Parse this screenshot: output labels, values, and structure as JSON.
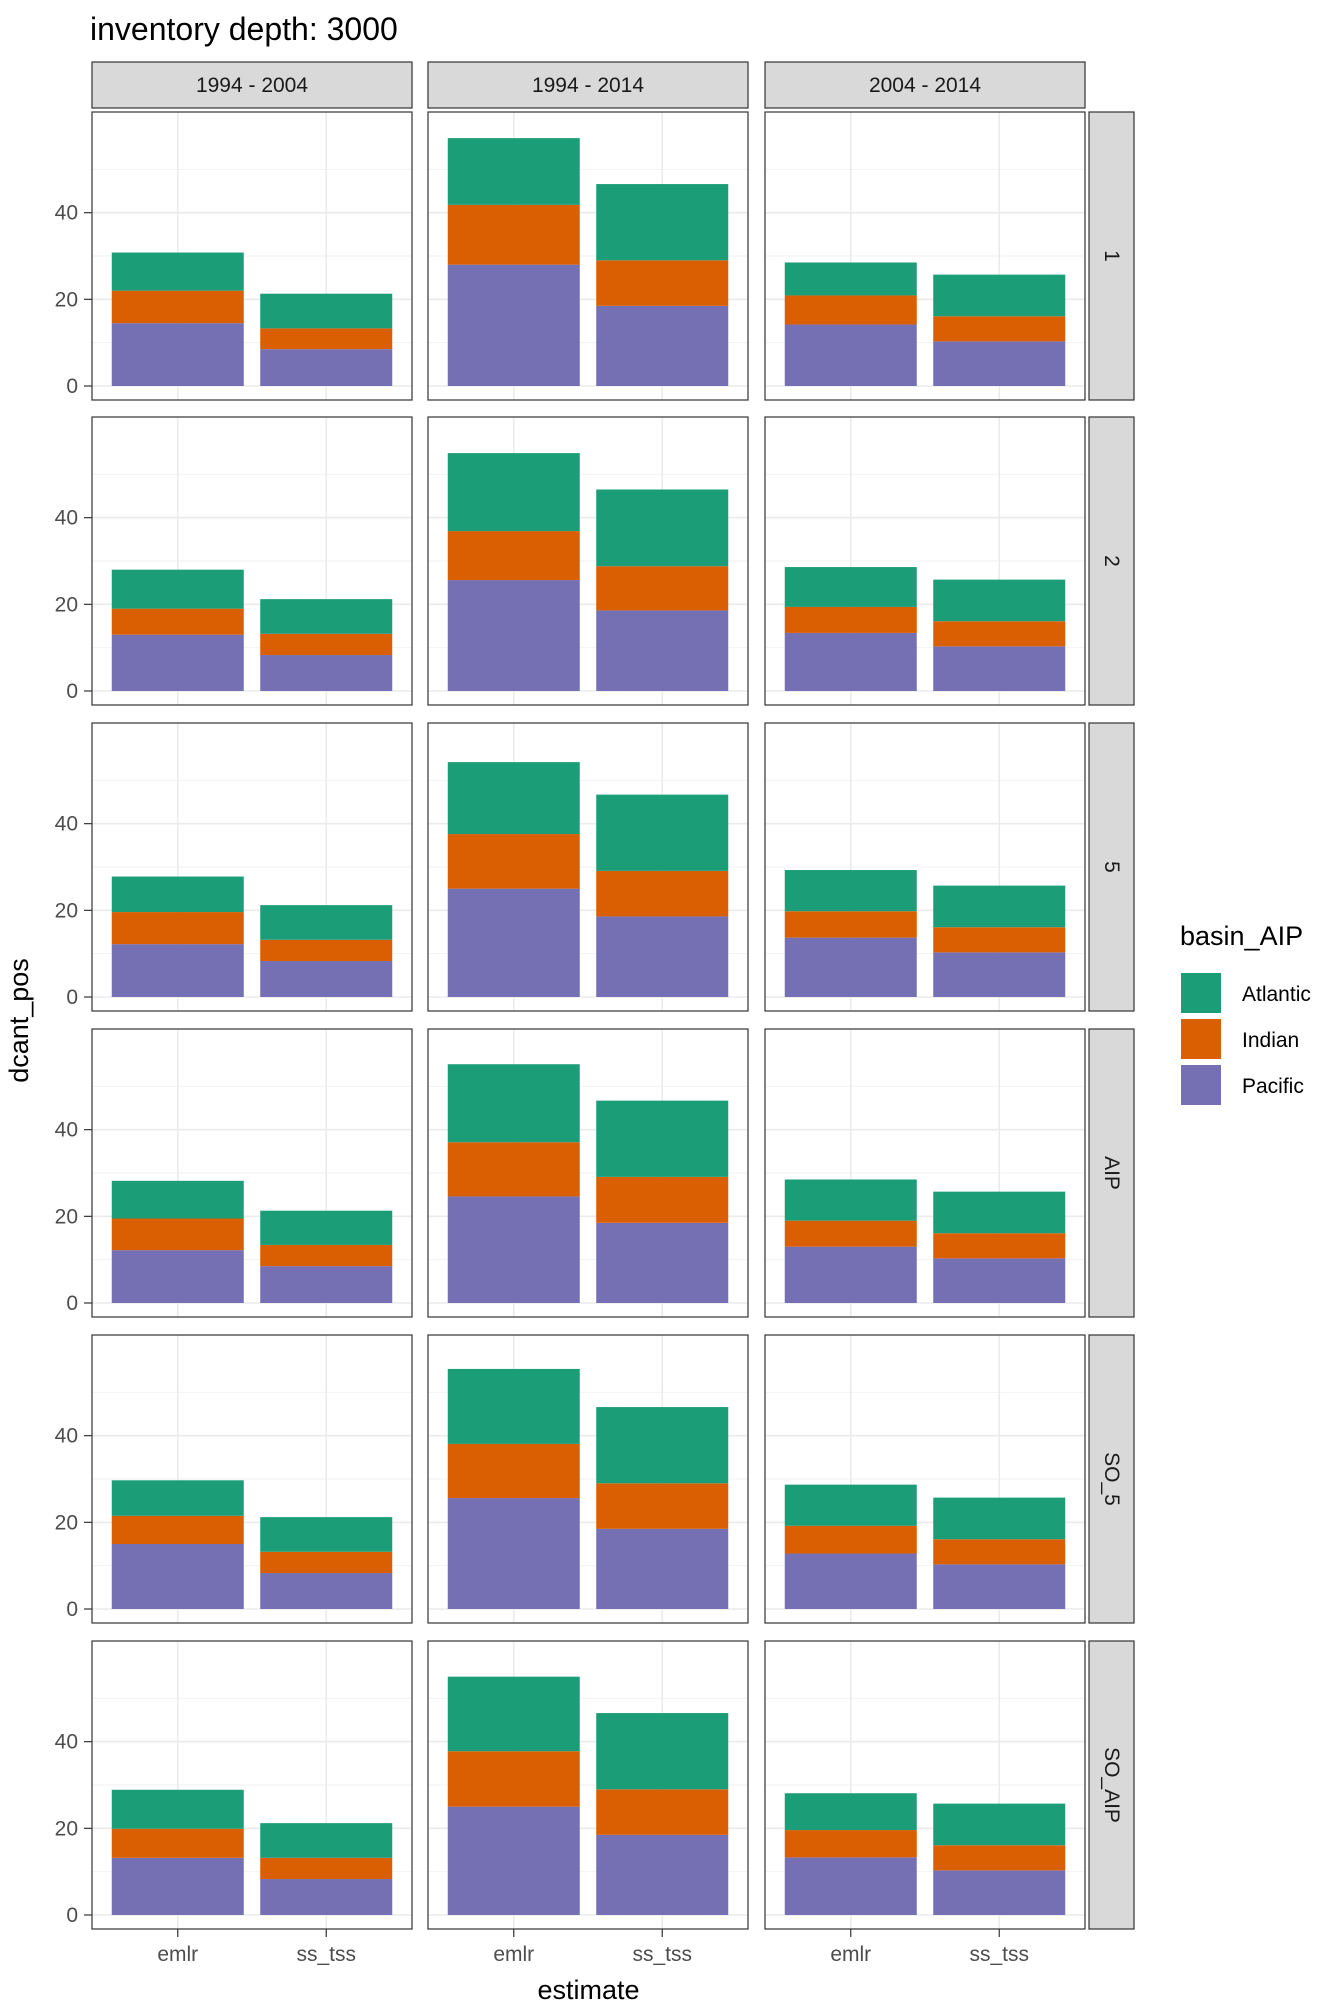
{
  "chart_data": {
    "type": "bar",
    "stacked": true,
    "title": "inventory depth: 3000",
    "xlabel": "estimate",
    "ylabel": "dcant_pos",
    "categories": [
      "emlr",
      "ss_tss"
    ],
    "columns": [
      "1994 - 2004",
      "1994 - 2014",
      "2004 - 2014"
    ],
    "rows": [
      "1",
      "2",
      "5",
      "AIP",
      "SO_5",
      "SO_AIP"
    ],
    "yticks": [
      0,
      20,
      40
    ],
    "ylim": [
      0,
      60
    ],
    "grid": true,
    "legend": {
      "title": "basin_AIP",
      "placement": "right",
      "entries": [
        {
          "name": "Atlantic",
          "color": "#1B9E77"
        },
        {
          "name": "Indian",
          "color": "#D95F02"
        },
        {
          "name": "Pacific",
          "color": "#7570B3"
        }
      ]
    },
    "stack_order": [
      "Pacific",
      "Indian",
      "Atlantic"
    ],
    "panels": [
      {
        "row": "1",
        "col": "1994 - 2004",
        "values": {
          "emlr": {
            "Pacific": 14.5,
            "Indian": 7.5,
            "Atlantic": 8.8
          },
          "ss_tss": {
            "Pacific": 8.5,
            "Indian": 4.8,
            "Atlantic": 8.0
          }
        }
      },
      {
        "row": "1",
        "col": "1994 - 2014",
        "values": {
          "emlr": {
            "Pacific": 28.0,
            "Indian": 13.8,
            "Atlantic": 15.4
          },
          "ss_tss": {
            "Pacific": 18.5,
            "Indian": 10.5,
            "Atlantic": 17.6
          }
        }
      },
      {
        "row": "1",
        "col": "2004 - 2014",
        "values": {
          "emlr": {
            "Pacific": 14.2,
            "Indian": 6.7,
            "Atlantic": 7.6
          },
          "ss_tss": {
            "Pacific": 10.3,
            "Indian": 5.8,
            "Atlantic": 9.6
          }
        }
      },
      {
        "row": "2",
        "col": "1994 - 2004",
        "values": {
          "emlr": {
            "Pacific": 13.0,
            "Indian": 6.0,
            "Atlantic": 9.0
          },
          "ss_tss": {
            "Pacific": 8.3,
            "Indian": 4.9,
            "Atlantic": 8.0
          }
        }
      },
      {
        "row": "2",
        "col": "1994 - 2014",
        "values": {
          "emlr": {
            "Pacific": 25.6,
            "Indian": 11.3,
            "Atlantic": 18.0
          },
          "ss_tss": {
            "Pacific": 18.6,
            "Indian": 10.2,
            "Atlantic": 17.7
          }
        }
      },
      {
        "row": "2",
        "col": "2004 - 2014",
        "values": {
          "emlr": {
            "Pacific": 13.4,
            "Indian": 6.0,
            "Atlantic": 9.2
          },
          "ss_tss": {
            "Pacific": 10.3,
            "Indian": 5.8,
            "Atlantic": 9.6
          }
        }
      },
      {
        "row": "5",
        "col": "1994 - 2004",
        "values": {
          "emlr": {
            "Pacific": 12.2,
            "Indian": 7.4,
            "Atlantic": 8.2
          },
          "ss_tss": {
            "Pacific": 8.3,
            "Indian": 4.9,
            "Atlantic": 8.0
          }
        }
      },
      {
        "row": "5",
        "col": "1994 - 2014",
        "values": {
          "emlr": {
            "Pacific": 25.0,
            "Indian": 12.6,
            "Atlantic": 16.6
          },
          "ss_tss": {
            "Pacific": 18.6,
            "Indian": 10.5,
            "Atlantic": 17.6
          }
        }
      },
      {
        "row": "5",
        "col": "2004 - 2014",
        "values": {
          "emlr": {
            "Pacific": 13.7,
            "Indian": 6.1,
            "Atlantic": 9.5
          },
          "ss_tss": {
            "Pacific": 10.3,
            "Indian": 5.8,
            "Atlantic": 9.6
          }
        }
      },
      {
        "row": "AIP",
        "col": "1994 - 2004",
        "values": {
          "emlr": {
            "Pacific": 12.2,
            "Indian": 7.3,
            "Atlantic": 8.7
          },
          "ss_tss": {
            "Pacific": 8.5,
            "Indian": 4.9,
            "Atlantic": 7.9
          }
        }
      },
      {
        "row": "AIP",
        "col": "1994 - 2014",
        "values": {
          "emlr": {
            "Pacific": 24.6,
            "Indian": 12.5,
            "Atlantic": 18.0
          },
          "ss_tss": {
            "Pacific": 18.5,
            "Indian": 10.6,
            "Atlantic": 17.6
          }
        }
      },
      {
        "row": "AIP",
        "col": "2004 - 2014",
        "values": {
          "emlr": {
            "Pacific": 13.0,
            "Indian": 6.0,
            "Atlantic": 9.5
          },
          "ss_tss": {
            "Pacific": 10.3,
            "Indian": 5.8,
            "Atlantic": 9.6
          }
        }
      },
      {
        "row": "SO_5",
        "col": "1994 - 2004",
        "values": {
          "emlr": {
            "Pacific": 15.0,
            "Indian": 6.5,
            "Atlantic": 8.2
          },
          "ss_tss": {
            "Pacific": 8.3,
            "Indian": 4.9,
            "Atlantic": 8.0
          }
        }
      },
      {
        "row": "SO_5",
        "col": "1994 - 2014",
        "values": {
          "emlr": {
            "Pacific": 25.6,
            "Indian": 12.5,
            "Atlantic": 17.3
          },
          "ss_tss": {
            "Pacific": 18.5,
            "Indian": 10.5,
            "Atlantic": 17.6
          }
        }
      },
      {
        "row": "SO_5",
        "col": "2004 - 2014",
        "values": {
          "emlr": {
            "Pacific": 12.8,
            "Indian": 6.4,
            "Atlantic": 9.5
          },
          "ss_tss": {
            "Pacific": 10.3,
            "Indian": 5.8,
            "Atlantic": 9.6
          }
        }
      },
      {
        "row": "SO_AIP",
        "col": "1994 - 2004",
        "values": {
          "emlr": {
            "Pacific": 13.2,
            "Indian": 6.7,
            "Atlantic": 9.0
          },
          "ss_tss": {
            "Pacific": 8.3,
            "Indian": 4.9,
            "Atlantic": 8.0
          }
        }
      },
      {
        "row": "SO_AIP",
        "col": "1994 - 2014",
        "values": {
          "emlr": {
            "Pacific": 25.0,
            "Indian": 12.8,
            "Atlantic": 17.2
          },
          "ss_tss": {
            "Pacific": 18.5,
            "Indian": 10.5,
            "Atlantic": 17.6
          }
        }
      },
      {
        "row": "SO_AIP",
        "col": "2004 - 2014",
        "values": {
          "emlr": {
            "Pacific": 13.3,
            "Indian": 6.3,
            "Atlantic": 8.5
          },
          "ss_tss": {
            "Pacific": 10.3,
            "Indian": 5.8,
            "Atlantic": 9.6
          }
        }
      }
    ]
  }
}
